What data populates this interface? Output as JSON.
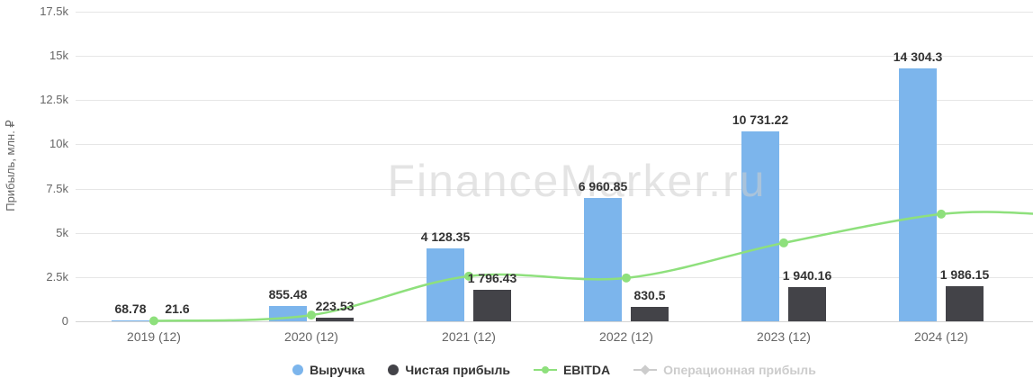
{
  "watermark": "FinanceMarker.ru",
  "chart_data": {
    "type": "bar",
    "title": "",
    "ylabel": "Прибыль, млн. ₽",
    "xlabel": "",
    "ylim": [
      0,
      17500
    ],
    "yticks": [
      0,
      2500,
      5000,
      7500,
      10000,
      12500,
      15000,
      17500
    ],
    "ytick_labels": [
      "0",
      "2.5k",
      "5k",
      "7.5k",
      "10k",
      "12.5k",
      "15k",
      "17.5k"
    ],
    "grid": "horizontal",
    "legend_position": "bottom-center",
    "categories": [
      "2019 (12)",
      "2020 (12)",
      "2021 (12)",
      "2022 (12)",
      "2023 (12)",
      "2024 (12)"
    ],
    "series": [
      {
        "name": "Выручка",
        "type": "bar",
        "color": "#7cb5ec",
        "values": [
          68.78,
          855.48,
          4128.35,
          6960.85,
          10731.22,
          14304.3
        ],
        "labels": [
          "68.78",
          "855.48",
          "4 128.35",
          "6 960.85",
          "10 731.22",
          "14 304.3"
        ]
      },
      {
        "name": "Чистая прибыль",
        "type": "bar",
        "color": "#434348",
        "values": [
          21.6,
          223.53,
          1796.43,
          830.5,
          1940.16,
          1986.15
        ],
        "labels": [
          "21.6",
          "223.53",
          "1 796.43",
          "830.5",
          "1 940.16",
          "1 986.15"
        ]
      },
      {
        "name": "EBITDA",
        "type": "line",
        "color": "#8ee07c",
        "marker": "circle",
        "values": [
          25,
          350,
          2550,
          2450,
          4430,
          6060
        ],
        "values_note": "estimated from line position; series has no data labels",
        "extends_past_last_category": true
      },
      {
        "name": "Операционная прибыль",
        "type": "line",
        "color": "#cccccc",
        "marker": "diamond",
        "disabled": true,
        "values": []
      }
    ]
  }
}
